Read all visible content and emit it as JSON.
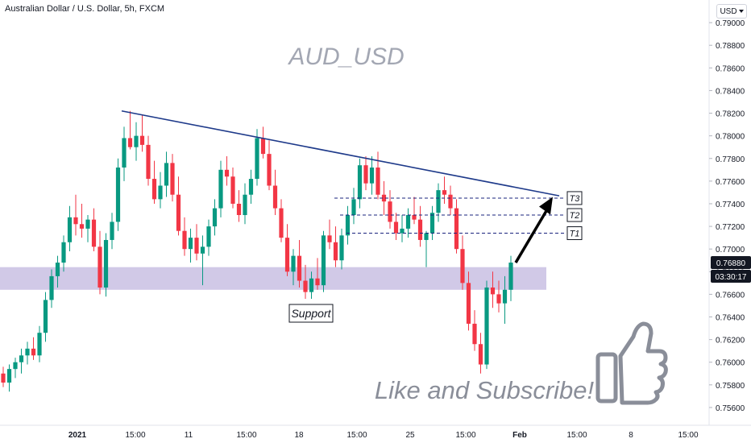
{
  "header": {
    "symbol_title": "Australian Dollar / U.S. Dollar, 5h, FXCM",
    "currency": "USD"
  },
  "price_badges": {
    "last_price": "0.76880",
    "countdown": "03:30:17"
  },
  "annotations": {
    "watermark": "AUD_USD",
    "support_label": "Support",
    "targets": [
      "T3",
      "T2",
      "T1"
    ],
    "cta": "Like and Subscribe!"
  },
  "icons": [
    "thumbs-up-icon",
    "chevron-down-icon"
  ],
  "colors": {
    "up": "#089981",
    "down": "#f23645",
    "trendline": "#1e3a8a",
    "support_zone": "#c9c0e3",
    "target_lines": "#1a237e",
    "badge_bg": "#131722"
  },
  "chart_data": {
    "type": "candlestick",
    "title": "AUD_USD",
    "instrument": "Australian Dollar / U.S. Dollar",
    "timeframe": "5h",
    "source": "FXCM",
    "ylim": [
      0.755,
      0.792
    ],
    "ytick_labels": [
      "0.75600",
      "0.75800",
      "0.76000",
      "0.76200",
      "0.76400",
      "0.76600",
      "0.76800",
      "0.77000",
      "0.77200",
      "0.77400",
      "0.77600",
      "0.77800",
      "0.78000",
      "0.78200",
      "0.78400",
      "0.78600",
      "0.78800",
      "0.79000"
    ],
    "xtick_labels": [
      "2021",
      "15:00",
      "11",
      "15:00",
      "18",
      "15:00",
      "25",
      "15:00",
      "Feb",
      "15:00",
      "8",
      "15:00"
    ],
    "candles": [
      [
        0.759,
        0.7596,
        0.7578,
        0.7582
      ],
      [
        0.7582,
        0.7598,
        0.7574,
        0.7594
      ],
      [
        0.7594,
        0.7604,
        0.7586,
        0.76
      ],
      [
        0.76,
        0.7612,
        0.759,
        0.7606
      ],
      [
        0.7606,
        0.7618,
        0.7598,
        0.7612
      ],
      [
        0.7612,
        0.7622,
        0.7602,
        0.7606
      ],
      [
        0.7606,
        0.7632,
        0.76,
        0.7626
      ],
      [
        0.7626,
        0.7662,
        0.7618,
        0.7655
      ],
      [
        0.7655,
        0.7682,
        0.7648,
        0.7676
      ],
      [
        0.7676,
        0.7694,
        0.7666,
        0.7688
      ],
      [
        0.7688,
        0.7712,
        0.768,
        0.7706
      ],
      [
        0.7706,
        0.7738,
        0.7698,
        0.7728
      ],
      [
        0.7728,
        0.7748,
        0.7712,
        0.7722
      ],
      [
        0.7722,
        0.774,
        0.771,
        0.7718
      ],
      [
        0.7718,
        0.773,
        0.7706,
        0.7726
      ],
      [
        0.7726,
        0.7736,
        0.7698,
        0.7702
      ],
      [
        0.7702,
        0.7716,
        0.766,
        0.7666
      ],
      [
        0.7666,
        0.7714,
        0.7658,
        0.7708
      ],
      [
        0.7708,
        0.7732,
        0.77,
        0.7724
      ],
      [
        0.7724,
        0.778,
        0.7716,
        0.7772
      ],
      [
        0.7772,
        0.7808,
        0.776,
        0.7798
      ],
      [
        0.7798,
        0.7822,
        0.7788,
        0.779
      ],
      [
        0.779,
        0.7812,
        0.7778,
        0.78
      ],
      [
        0.78,
        0.7818,
        0.7786,
        0.7792
      ],
      [
        0.7792,
        0.78,
        0.7756,
        0.7762
      ],
      [
        0.7762,
        0.7778,
        0.774,
        0.7744
      ],
      [
        0.7744,
        0.7768,
        0.7736,
        0.7756
      ],
      [
        0.7756,
        0.7786,
        0.7746,
        0.7776
      ],
      [
        0.7776,
        0.7784,
        0.7742,
        0.7748
      ],
      [
        0.7748,
        0.7764,
        0.7712,
        0.7716
      ],
      [
        0.7716,
        0.7728,
        0.7694,
        0.77
      ],
      [
        0.77,
        0.7718,
        0.7688,
        0.771
      ],
      [
        0.771,
        0.7722,
        0.769,
        0.7696
      ],
      [
        0.7696,
        0.7712,
        0.7668,
        0.7702
      ],
      [
        0.7702,
        0.7726,
        0.7694,
        0.772
      ],
      [
        0.772,
        0.7744,
        0.7712,
        0.7736
      ],
      [
        0.7736,
        0.7778,
        0.7728,
        0.777
      ],
      [
        0.777,
        0.7782,
        0.7756,
        0.7764
      ],
      [
        0.7764,
        0.7772,
        0.7736,
        0.774
      ],
      [
        0.774,
        0.7752,
        0.7724,
        0.773
      ],
      [
        0.773,
        0.7758,
        0.7722,
        0.7748
      ],
      [
        0.7748,
        0.777,
        0.774,
        0.7762
      ],
      [
        0.7762,
        0.7806,
        0.7756,
        0.7798
      ],
      [
        0.7798,
        0.7808,
        0.778,
        0.7784
      ],
      [
        0.7784,
        0.7796,
        0.7752,
        0.7756
      ],
      [
        0.7756,
        0.777,
        0.773,
        0.7736
      ],
      [
        0.7736,
        0.7744,
        0.7706,
        0.771
      ],
      [
        0.771,
        0.7722,
        0.7676,
        0.768
      ],
      [
        0.768,
        0.77,
        0.7668,
        0.7694
      ],
      [
        0.7694,
        0.7708,
        0.7666,
        0.7672
      ],
      [
        0.7672,
        0.7686,
        0.7656,
        0.7662
      ],
      [
        0.7662,
        0.768,
        0.7656,
        0.7674
      ],
      [
        0.7674,
        0.7692,
        0.7664,
        0.7668
      ],
      [
        0.7668,
        0.7716,
        0.7662,
        0.7712
      ],
      [
        0.7712,
        0.7726,
        0.77,
        0.7706
      ],
      [
        0.7706,
        0.772,
        0.7684,
        0.769
      ],
      [
        0.769,
        0.7718,
        0.7682,
        0.7712
      ],
      [
        0.7712,
        0.7738,
        0.7704,
        0.773
      ],
      [
        0.773,
        0.7754,
        0.7722,
        0.7744
      ],
      [
        0.7744,
        0.778,
        0.7736,
        0.7774
      ],
      [
        0.7774,
        0.7782,
        0.7752,
        0.7758
      ],
      [
        0.7758,
        0.7782,
        0.7748,
        0.7772
      ],
      [
        0.7772,
        0.7786,
        0.7744,
        0.7748
      ],
      [
        0.7748,
        0.776,
        0.773,
        0.7742
      ],
      [
        0.7742,
        0.7752,
        0.7718,
        0.7724
      ],
      [
        0.7724,
        0.7732,
        0.7708,
        0.7714
      ],
      [
        0.7714,
        0.773,
        0.7706,
        0.7718
      ],
      [
        0.7718,
        0.7736,
        0.771,
        0.773
      ],
      [
        0.773,
        0.7746,
        0.7722,
        0.7726
      ],
      [
        0.7726,
        0.7738,
        0.7702,
        0.7708
      ],
      [
        0.7708,
        0.7716,
        0.7684,
        0.7714
      ],
      [
        0.7714,
        0.7738,
        0.7708,
        0.7732
      ],
      [
        0.7732,
        0.7758,
        0.7724,
        0.7752
      ],
      [
        0.7752,
        0.7764,
        0.774,
        0.7748
      ],
      [
        0.7748,
        0.7756,
        0.773,
        0.7736
      ],
      [
        0.7736,
        0.7744,
        0.7696,
        0.77
      ],
      [
        0.77,
        0.7712,
        0.7664,
        0.767
      ],
      [
        0.767,
        0.768,
        0.7628,
        0.7634
      ],
      [
        0.7634,
        0.7646,
        0.761,
        0.7616
      ],
      [
        0.7616,
        0.7626,
        0.759,
        0.7598
      ],
      [
        0.7598,
        0.7672,
        0.7594,
        0.7666
      ],
      [
        0.7666,
        0.768,
        0.7648,
        0.766
      ],
      [
        0.766,
        0.7672,
        0.7644,
        0.7652
      ],
      [
        0.7652,
        0.7676,
        0.7634,
        0.7664
      ],
      [
        0.7664,
        0.7694,
        0.7654,
        0.7688
      ]
    ],
    "trendline": {
      "x1": "2021 15:00",
      "y1": 0.7822,
      "x2": "Feb 15:00",
      "y2": 0.7747
    },
    "support_zone": {
      "y_min": 0.7664,
      "y_max": 0.7684,
      "label": "Support"
    },
    "targets": [
      {
        "label": "T3",
        "y": 0.7745
      },
      {
        "label": "T2",
        "y": 0.773
      },
      {
        "label": "T1",
        "y": 0.7714
      }
    ],
    "projection_arrow": {
      "from": 0.7688,
      "to": 0.7746
    },
    "last_price": 0.7688,
    "grid": false,
    "legend": "none"
  }
}
